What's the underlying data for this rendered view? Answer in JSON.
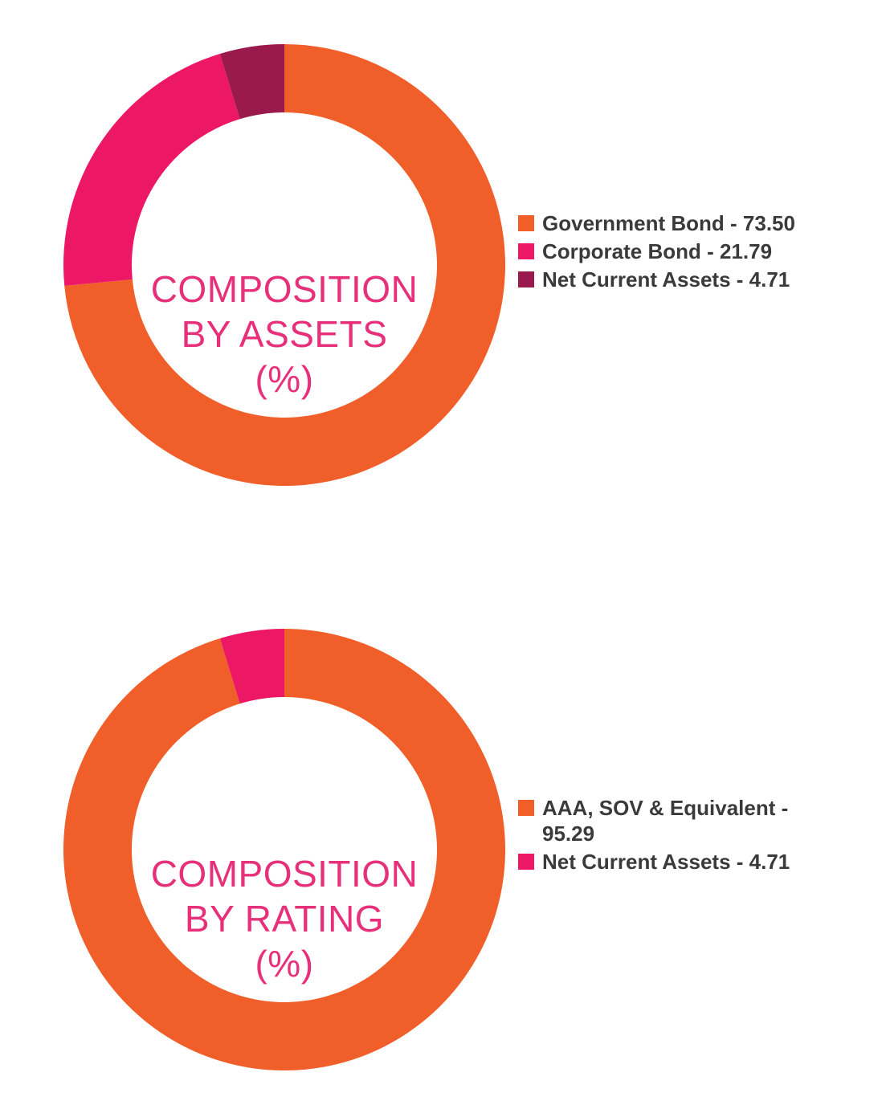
{
  "chart_data": [
    {
      "type": "pie",
      "title_lines": [
        "COMPOSITION",
        "BY ASSETS",
        "(%)"
      ],
      "categories": [
        "Government Bond",
        "Corporate Bond",
        "Net Current Assets"
      ],
      "values": [
        73.5,
        21.79,
        4.71
      ],
      "colors": [
        "#f05e2a",
        "#ec1866",
        "#9b1a4e"
      ],
      "legend_labels": [
        "Government Bond - 73.50",
        "Corporate Bond - 21.79",
        "Net Current Assets - 4.71"
      ],
      "legend_placement": "right"
    },
    {
      "type": "pie",
      "title_lines": [
        "COMPOSITION",
        "BY RATING",
        "(%)"
      ],
      "categories": [
        "AAA, SOV & Equivalent",
        "Net Current Assets"
      ],
      "values": [
        95.29,
        4.71
      ],
      "colors": [
        "#f05e2a",
        "#ec1866"
      ],
      "legend_labels": [
        "AAA, SOV & Equivalent - 95.29",
        "Net Current Assets - 4.71"
      ],
      "legend_placement": "right"
    }
  ]
}
